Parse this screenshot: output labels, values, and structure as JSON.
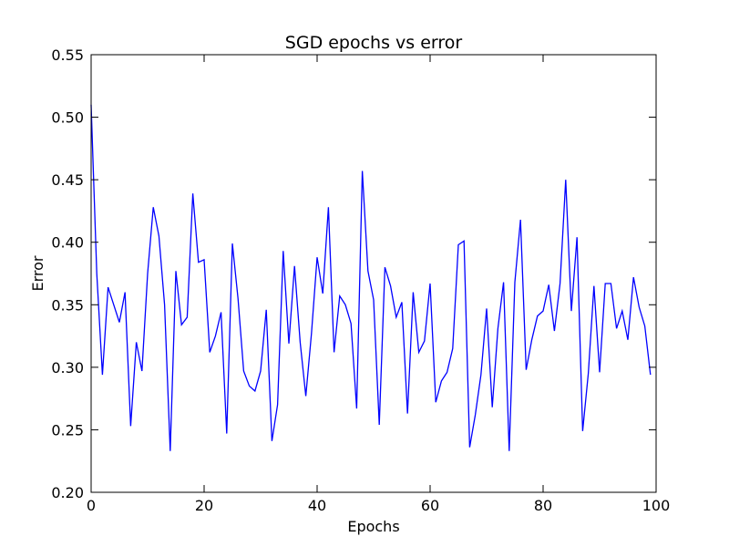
{
  "chart_data": {
    "type": "line",
    "title": "SGD epochs vs error",
    "xlabel": "Epochs",
    "ylabel": "Error",
    "xlim": [
      0,
      100
    ],
    "ylim": [
      0.2,
      0.55
    ],
    "xticks": [
      0,
      20,
      40,
      60,
      80,
      100
    ],
    "xtick_labels": [
      "0",
      "20",
      "40",
      "60",
      "80",
      "100"
    ],
    "yticks": [
      0.2,
      0.25,
      0.3,
      0.35,
      0.4,
      0.45,
      0.5,
      0.55
    ],
    "ytick_labels": [
      "0.20",
      "0.25",
      "0.30",
      "0.35",
      "0.40",
      "0.45",
      "0.50",
      "0.55"
    ],
    "grid": false,
    "line_color": "#0000ff",
    "series": [
      {
        "x": [
          0,
          1,
          2,
          3,
          4,
          5,
          6,
          7,
          8,
          9,
          10,
          11,
          12,
          13,
          14,
          15,
          16,
          17,
          18,
          19,
          20,
          21,
          22,
          23,
          24,
          25,
          26,
          27,
          28,
          29,
          30,
          31,
          32,
          33,
          34,
          35,
          36,
          37,
          38,
          39,
          40,
          41,
          42,
          43,
          44,
          45,
          46,
          47,
          48,
          49,
          50,
          51,
          52,
          53,
          54,
          55,
          56,
          57,
          58,
          59,
          60,
          61,
          62,
          63,
          64,
          65,
          66,
          67,
          68,
          69,
          70,
          71,
          72,
          73,
          74,
          75,
          76,
          77,
          78,
          79,
          80,
          81,
          82,
          83,
          84,
          85,
          86,
          87,
          88,
          89,
          90,
          91,
          92,
          93,
          94,
          95,
          96,
          97,
          98,
          99
        ],
        "values": [
          0.51,
          0.375,
          0.294,
          0.364,
          0.35,
          0.336,
          0.36,
          0.253,
          0.32,
          0.297,
          0.375,
          0.428,
          0.405,
          0.35,
          0.233,
          0.377,
          0.334,
          0.34,
          0.439,
          0.384,
          0.386,
          0.312,
          0.325,
          0.344,
          0.247,
          0.399,
          0.355,
          0.297,
          0.285,
          0.281,
          0.297,
          0.346,
          0.241,
          0.27,
          0.393,
          0.319,
          0.381,
          0.32,
          0.277,
          0.327,
          0.388,
          0.359,
          0.428,
          0.312,
          0.357,
          0.35,
          0.335,
          0.267,
          0.457,
          0.377,
          0.354,
          0.254,
          0.38,
          0.365,
          0.34,
          0.352,
          0.263,
          0.36,
          0.312,
          0.321,
          0.367,
          0.272,
          0.289,
          0.296,
          0.315,
          0.398,
          0.401,
          0.236,
          0.262,
          0.294,
          0.347,
          0.268,
          0.331,
          0.368,
          0.233,
          0.368,
          0.418,
          0.298,
          0.322,
          0.341,
          0.345,
          0.366,
          0.329,
          0.367,
          0.45,
          0.345,
          0.404,
          0.249,
          0.295,
          0.365,
          0.296,
          0.367,
          0.367,
          0.331,
          0.345,
          0.322,
          0.372,
          0.348,
          0.333,
          0.294
        ]
      }
    ]
  }
}
